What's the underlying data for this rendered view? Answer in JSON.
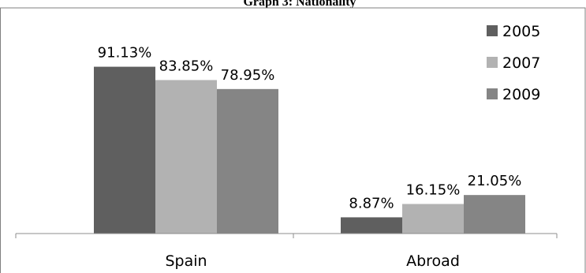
{
  "chart_data": {
    "type": "bar",
    "title": "Graph 3: Nationality",
    "categories": [
      "Spain",
      "Abroad"
    ],
    "series": [
      {
        "name": "2005",
        "values": [
          91.13,
          8.87
        ],
        "labels": [
          "91.13%",
          "8.87%"
        ],
        "color": "#5f5f5f"
      },
      {
        "name": "2007",
        "values": [
          83.85,
          16.15
        ],
        "labels": [
          "83.85%",
          "16.15%"
        ],
        "color": "#b2b2b2"
      },
      {
        "name": "2009",
        "values": [
          78.95,
          21.05
        ],
        "labels": [
          "78.95%",
          "21.05%"
        ],
        "color": "#858585"
      }
    ],
    "ylim": [
      0,
      100
    ],
    "grid": false,
    "legend_position": "top-right"
  }
}
